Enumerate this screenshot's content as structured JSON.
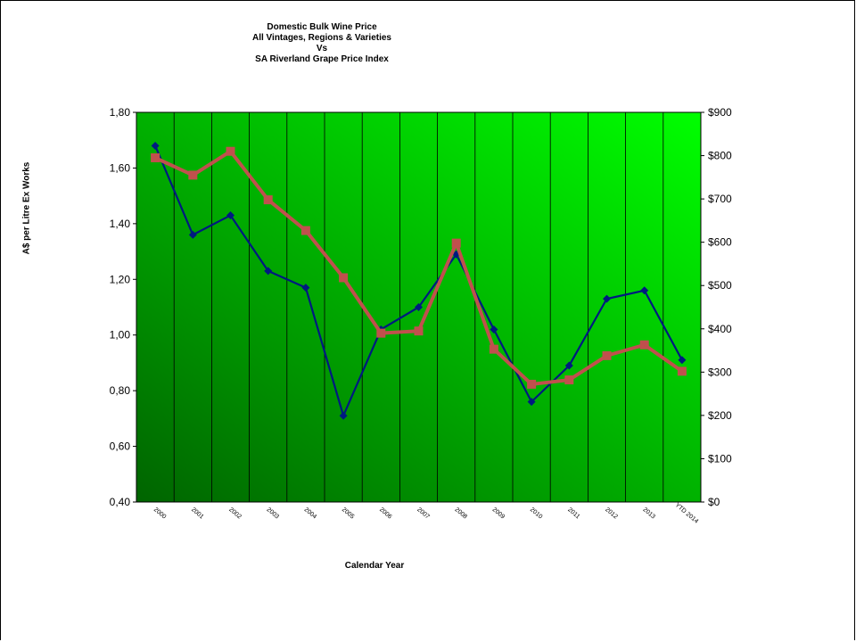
{
  "chart_data": {
    "type": "line",
    "title_lines": [
      "Domestic Bulk Wine Price",
      "All Vintages, Regions & Varieties",
      "Vs",
      "SA Riverland Grape Price Index"
    ],
    "xlabel": "Calendar Year",
    "ylabel": "A$ per Litre Ex Works",
    "ylabel_right": "",
    "categories": [
      "2000",
      "2001",
      "2002",
      "2003",
      "2004",
      "2005",
      "2006",
      "2007",
      "2008",
      "2009",
      "2010",
      "2011",
      "2012",
      "2013",
      "YTD 2014"
    ],
    "y_left": {
      "range": [
        0.4,
        1.8
      ],
      "ticks": [
        "0,40",
        "0,60",
        "0,80",
        "1,00",
        "1,20",
        "1,40",
        "1,60",
        "1,80"
      ]
    },
    "y_right": {
      "range": [
        0,
        900
      ],
      "ticks": [
        "$0",
        "$100",
        "$200",
        "$300",
        "$400",
        "$500",
        "$600",
        "$700",
        "$800",
        "$900"
      ]
    },
    "series": [
      {
        "axis": "left",
        "color": "#001a80",
        "marker": "diamond",
        "values": [
          1.68,
          1.36,
          1.43,
          1.23,
          1.17,
          0.71,
          1.02,
          1.1,
          1.29,
          1.02,
          0.76,
          0.89,
          1.13,
          1.16,
          0.91
        ]
      },
      {
        "axis": "right",
        "color": "#c0504d",
        "marker": "square",
        "values": [
          795,
          755,
          810,
          698,
          627,
          518,
          390,
          395,
          598,
          353,
          272,
          282,
          338,
          363,
          302
        ]
      }
    ],
    "grid": "vertical",
    "plot_gradient": [
      "#006400",
      "#00ff00"
    ]
  }
}
